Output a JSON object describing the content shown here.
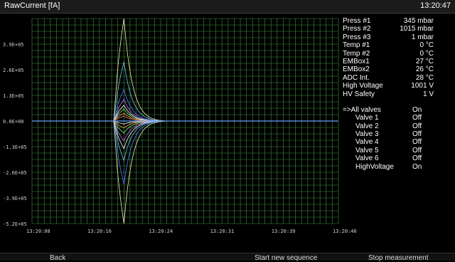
{
  "app": {
    "title": "RawCurrent [fA]",
    "clock": "13:20:47"
  },
  "chart_data": {
    "type": "line",
    "title": "RawCurrent [fA]",
    "xlabel": "",
    "ylabel": "",
    "x_ticks": [
      "13:20:08",
      "13:20:16",
      "13:20:24",
      "13:20:31",
      "13:20:39",
      "13:20:46"
    ],
    "y_ticks": [
      "3.9E+05",
      "2.6E+05",
      "1.3E+05",
      "0.0E+00",
      "-1.3E+05",
      "-2.6E+05",
      "-3.9E+05",
      "-5.2E+05"
    ],
    "ylim": [
      -520000,
      520000
    ],
    "grid": true,
    "series": [
      {
        "color": "#f4f0b0",
        "amp": 520000
      },
      {
        "color": "#6ec6e6",
        "amp": 300000
      },
      {
        "color": "#4d7fff",
        "amp": 160000
      },
      {
        "color": "#c06cff",
        "amp": 110000
      },
      {
        "color": "#ffffff",
        "amp": 80000
      },
      {
        "color": "#80ff80",
        "amp": 60000
      },
      {
        "color": "#ffb060",
        "amp": 40000
      },
      {
        "color": "#ff8080",
        "amp": 25000
      },
      {
        "color": "#ffffff",
        "amp": -15000
      },
      {
        "color": "#ffb060",
        "amp": -35000
      },
      {
        "color": "#80ff80",
        "amp": -60000
      },
      {
        "color": "#c06cff",
        "amp": -100000
      },
      {
        "color": "#ffffff",
        "amp": -140000
      },
      {
        "color": "#6ec6e6",
        "amp": -200000
      },
      {
        "color": "#4d7fff",
        "amp": -320000
      },
      {
        "color": "#f4f0b0",
        "amp": -520000
      }
    ]
  },
  "panel": {
    "readings": [
      {
        "label": "Press #1",
        "value": "345 mbar"
      },
      {
        "label": "Press #2",
        "value": "1015 mbar"
      },
      {
        "label": "Press #3",
        "value": "1 mbar"
      },
      {
        "label": "Temp #1",
        "value": "0 °C"
      },
      {
        "label": "Temp #2",
        "value": "0 °C"
      },
      {
        "label": "EMBox1",
        "value": "27 °C"
      },
      {
        "label": "EMBox2",
        "value": "26 °C"
      },
      {
        "label": "ADC Int.",
        "value": "28 °C"
      },
      {
        "label": "High Voltage",
        "value": "1001 V"
      },
      {
        "label": "HV Safety",
        "value": "1 V"
      }
    ],
    "all_valves": {
      "label": "=>All valves",
      "value": "On"
    },
    "valves": [
      {
        "label": "Valve 1",
        "value": "Off"
      },
      {
        "label": "Valve 2",
        "value": "Off"
      },
      {
        "label": "Valve 3",
        "value": "Off"
      },
      {
        "label": "Valve 4",
        "value": "Off"
      },
      {
        "label": "Valve 5",
        "value": "Off"
      },
      {
        "label": "Valve 6",
        "value": "Off"
      },
      {
        "label": "HighVoltage",
        "value": "On"
      }
    ]
  },
  "bottom": {
    "back": "Back",
    "start": "Start new sequence",
    "stop": "Stop measurement"
  }
}
